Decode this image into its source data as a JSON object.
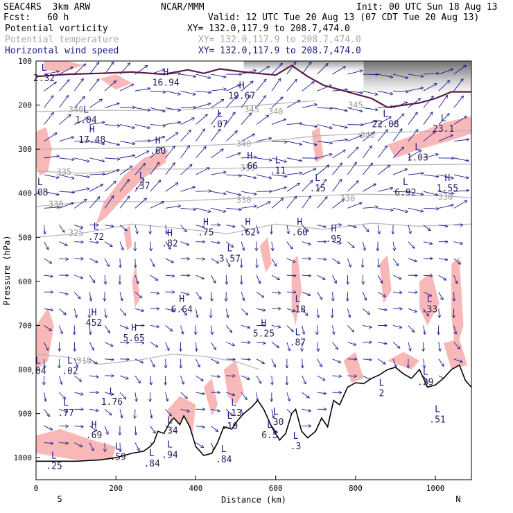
{
  "header": {
    "model": "SEAC4RS  3km ARW",
    "org": "NCAR/MMM",
    "init": "Init: 00 UTC Sun 18 Aug 13",
    "fcst_label": "Fcst:",
    "fcst_value": "60 h",
    "valid": "Valid: 12 UTC Tue 20 Aug 13 (07 CDT Tue 20 Aug 13)",
    "fields": [
      {
        "name": "Potential vorticity",
        "xy": "XY= 132.0,117.9 to 208.7,474.0",
        "color": "#000000"
      },
      {
        "name": "Potential temperature",
        "xy": "XY= 132.0,117.9 to 208.7,474.0",
        "color": "#a8a8a8"
      },
      {
        "name": "Horizontal wind speed",
        "xy": "XY= 132.0,117.9 to 208.7,474.0",
        "color": "#1a1a8c"
      }
    ]
  },
  "chart_data": {
    "type": "cross-section",
    "xlabel": "Distance (km)",
    "ylabel": "Pressure (hPa)",
    "xlim": [
      0,
      1090
    ],
    "ylim": [
      1050,
      100
    ],
    "x_ticks": [
      0,
      200,
      400,
      600,
      800,
      1000
    ],
    "y_ticks": [
      100,
      200,
      300,
      400,
      500,
      600,
      700,
      800,
      900,
      1000
    ],
    "left_end_label": "S",
    "right_end_label": "N",
    "theta_contours": [
      {
        "label": "315",
        "x": 120,
        "p": 780,
        "path": [
          [
            0,
            765
          ],
          [
            80,
            772
          ],
          [
            160,
            788
          ],
          [
            260,
            778
          ],
          [
            340,
            765
          ],
          [
            420,
            770
          ],
          [
            500,
            782
          ],
          [
            560,
            800
          ]
        ]
      },
      {
        "label": "325",
        "x": 100,
        "p": 490,
        "path": [
          [
            0,
            500
          ],
          [
            120,
            490
          ],
          [
            240,
            470
          ],
          [
            360,
            480
          ],
          [
            480,
            492
          ],
          [
            600,
            470
          ],
          [
            720,
            482
          ],
          [
            840,
            468
          ],
          [
            960,
            475
          ],
          [
            1090,
            470
          ]
        ]
      },
      {
        "label": "330",
        "x": 50,
        "p": 425,
        "path": [
          [
            0,
            430
          ],
          [
            150,
            418
          ],
          [
            300,
            420
          ],
          [
            500,
            412
          ],
          [
            650,
            408
          ],
          [
            800,
            402
          ],
          [
            1000,
            405
          ],
          [
            1090,
            410
          ]
        ]
      },
      {
        "label": "330",
        "x": 520,
        "p": 415,
        "path": []
      },
      {
        "label": "330",
        "x": 780,
        "p": 412,
        "path": []
      },
      {
        "label": "330",
        "x": 1025,
        "p": 408,
        "path": []
      },
      {
        "label": "335",
        "x": 70,
        "p": 352,
        "path": [
          [
            0,
            350
          ],
          [
            120,
            355
          ],
          [
            250,
            345
          ],
          [
            400,
            345
          ],
          [
            550,
            342
          ],
          [
            700,
            340
          ],
          [
            880,
            336
          ],
          [
            1090,
            334
          ]
        ]
      },
      {
        "label": "335",
        "x": 530,
        "p": 342,
        "path": []
      },
      {
        "label": "340",
        "x": 520,
        "p": 288,
        "path": [
          [
            0,
            300
          ],
          [
            200,
            298
          ],
          [
            400,
            292
          ],
          [
            520,
            288
          ],
          [
            700,
            270
          ],
          [
            880,
            262
          ],
          [
            1090,
            258
          ]
        ]
      },
      {
        "label": "340",
        "x": 830,
        "p": 268,
        "path": []
      },
      {
        "label": "340",
        "x": 100,
        "p": 210,
        "path": [
          [
            0,
            215
          ],
          [
            150,
            212
          ],
          [
            300,
            212
          ],
          [
            420,
            208
          ],
          [
            560,
            200
          ],
          [
            700,
            190
          ]
        ]
      },
      {
        "label": "340",
        "x": 600,
        "p": 215,
        "path": []
      },
      {
        "label": "345",
        "x": 540,
        "p": 210,
        "path": []
      },
      {
        "label": "345",
        "x": 800,
        "p": 200,
        "path": []
      }
    ],
    "extrema": [
      {
        "type": "L",
        "value": "2.32",
        "x": 20,
        "p": 125
      },
      {
        "type": "H",
        "value": "16.94",
        "x": 325,
        "p": 135
      },
      {
        "type": "H",
        "value": "19.67",
        "x": 515,
        "p": 165
      },
      {
        "type": "L",
        "value": "1.04",
        "x": 125,
        "p": 220
      },
      {
        "type": "H",
        "value": "17.48",
        "x": 140,
        "p": 265
      },
      {
        "type": "L",
        "value": ".07",
        "x": 460,
        "p": 230
      },
      {
        "type": "L",
        "value": "22.08",
        "x": 875,
        "p": 230
      },
      {
        "type": "L",
        "value": "23.1",
        "x": 1020,
        "p": 240
      },
      {
        "type": "H",
        "value": ".60",
        "x": 305,
        "p": 290
      },
      {
        "type": "L",
        "value": "1.03",
        "x": 955,
        "p": 305
      },
      {
        "type": "H",
        "value": ".66",
        "x": 535,
        "p": 325
      },
      {
        "type": "L",
        "value": ".11",
        "x": 605,
        "p": 335
      },
      {
        "type": "L",
        "value": ".37",
        "x": 265,
        "p": 370
      },
      {
        "type": "L",
        "value": ".15",
        "x": 705,
        "p": 375
      },
      {
        "type": "L",
        "value": "6.92",
        "x": 925,
        "p": 385
      },
      {
        "type": "H",
        "value": "1.55",
        "x": 1030,
        "p": 375
      },
      {
        "type": "L",
        "value": ".08",
        "x": 10,
        "p": 385
      },
      {
        "type": "L",
        "value": ".72",
        "x": 150,
        "p": 485
      },
      {
        "type": "H",
        "value": ".75",
        "x": 425,
        "p": 475
      },
      {
        "type": "H",
        "value": ".62",
        "x": 530,
        "p": 475
      },
      {
        "type": "H",
        "value": ".60",
        "x": 660,
        "p": 475
      },
      {
        "type": "H",
        "value": ".95",
        "x": 745,
        "p": 490
      },
      {
        "type": "H",
        "value": ".82",
        "x": 335,
        "p": 500
      },
      {
        "type": "L",
        "value": "3.57",
        "x": 485,
        "p": 535
      },
      {
        "type": "H",
        "value": "6.64",
        "x": 365,
        "p": 650
      },
      {
        "type": "L",
        "value": ".18",
        "x": 655,
        "p": 650
      },
      {
        "type": "L",
        "value": ".33",
        "x": 985,
        "p": 650
      },
      {
        "type": "H",
        "value": "5.25",
        "x": 570,
        "p": 705
      },
      {
        "type": "H",
        "value": "5.65",
        "x": 245,
        "p": 715
      },
      {
        "type": "L",
        "value": ".87",
        "x": 655,
        "p": 725
      },
      {
        "type": "H",
        "value": "452",
        "x": 145,
        "p": 680
      },
      {
        "type": "L",
        "value": ".04",
        "x": 5,
        "p": 790
      },
      {
        "type": "L",
        "value": ".02",
        "x": 85,
        "p": 790
      },
      {
        "type": "L",
        "value": ".29",
        "x": 975,
        "p": 815
      },
      {
        "type": "L",
        "value": "1.76",
        "x": 190,
        "p": 860
      },
      {
        "type": "L",
        "value": ".77",
        "x": 75,
        "p": 885
      },
      {
        "type": "L",
        "value": ".13",
        "x": 495,
        "p": 885
      },
      {
        "type": "L",
        "value": ".10",
        "x": 485,
        "p": 915
      },
      {
        "type": "L",
        "value": ".30",
        "x": 600,
        "p": 905
      },
      {
        "type": "L",
        "value": ".51",
        "x": 1005,
        "p": 900
      },
      {
        "type": "H",
        "value": ".69",
        "x": 145,
        "p": 935
      },
      {
        "type": "L",
        "value": "6.5",
        "x": 585,
        "p": 935
      },
      {
        "type": "L",
        "value": ".34",
        "x": 335,
        "p": 925
      },
      {
        "type": "L",
        "value": ".25",
        "x": 45,
        "p": 1005
      },
      {
        "type": "L",
        "value": ".59",
        "x": 205,
        "p": 985
      },
      {
        "type": "L",
        "value": ".84",
        "x": 290,
        "p": 1000
      },
      {
        "type": "L",
        "value": ".84",
        "x": 470,
        "p": 990
      },
      {
        "type": "L",
        "value": ".94",
        "x": 335,
        "p": 980
      },
      {
        "type": "L",
        "value": ".3",
        "x": 650,
        "p": 960
      },
      {
        "type": "L",
        "value": "2",
        "x": 865,
        "p": 840
      }
    ],
    "terrain": [
      [
        0,
        1008
      ],
      [
        100,
        1008
      ],
      [
        160,
        1005
      ],
      [
        200,
        1000
      ],
      [
        240,
        990
      ],
      [
        270,
        985
      ],
      [
        285,
        975
      ],
      [
        295,
        965
      ],
      [
        305,
        940
      ],
      [
        320,
        945
      ],
      [
        335,
        920
      ],
      [
        345,
        910
      ],
      [
        360,
        925
      ],
      [
        370,
        905
      ],
      [
        385,
        930
      ],
      [
        400,
        975
      ],
      [
        420,
        995
      ],
      [
        440,
        990
      ],
      [
        455,
        965
      ],
      [
        470,
        930
      ],
      [
        490,
        935
      ],
      [
        505,
        915
      ],
      [
        520,
        900
      ],
      [
        540,
        885
      ],
      [
        555,
        870
      ],
      [
        570,
        890
      ],
      [
        590,
        930
      ],
      [
        610,
        960
      ],
      [
        625,
        945
      ],
      [
        640,
        900
      ],
      [
        650,
        890
      ],
      [
        665,
        940
      ],
      [
        680,
        955
      ],
      [
        700,
        940
      ],
      [
        715,
        910
      ],
      [
        730,
        930
      ],
      [
        745,
        870
      ],
      [
        760,
        880
      ],
      [
        780,
        840
      ],
      [
        800,
        830
      ],
      [
        820,
        832
      ],
      [
        840,
        820
      ],
      [
        860,
        812
      ],
      [
        880,
        800
      ],
      [
        900,
        795
      ],
      [
        920,
        810
      ],
      [
        940,
        820
      ],
      [
        960,
        800
      ],
      [
        980,
        840
      ],
      [
        1000,
        835
      ],
      [
        1020,
        820
      ],
      [
        1040,
        800
      ],
      [
        1060,
        790
      ],
      [
        1075,
        825
      ],
      [
        1090,
        840
      ]
    ],
    "tropopause": [
      [
        0,
        135
      ],
      [
        80,
        130
      ],
      [
        160,
        128
      ],
      [
        240,
        125
      ],
      [
        320,
        130
      ],
      [
        380,
        120
      ],
      [
        420,
        128
      ],
      [
        460,
        118
      ],
      [
        520,
        125
      ],
      [
        600,
        132
      ],
      [
        640,
        110
      ],
      [
        680,
        135
      ],
      [
        720,
        155
      ],
      [
        760,
        165
      ],
      [
        800,
        175
      ],
      [
        840,
        185
      ],
      [
        880,
        205
      ],
      [
        920,
        200
      ],
      [
        960,
        195
      ],
      [
        1000,
        185
      ],
      [
        1040,
        170
      ],
      [
        1090,
        170
      ]
    ]
  }
}
